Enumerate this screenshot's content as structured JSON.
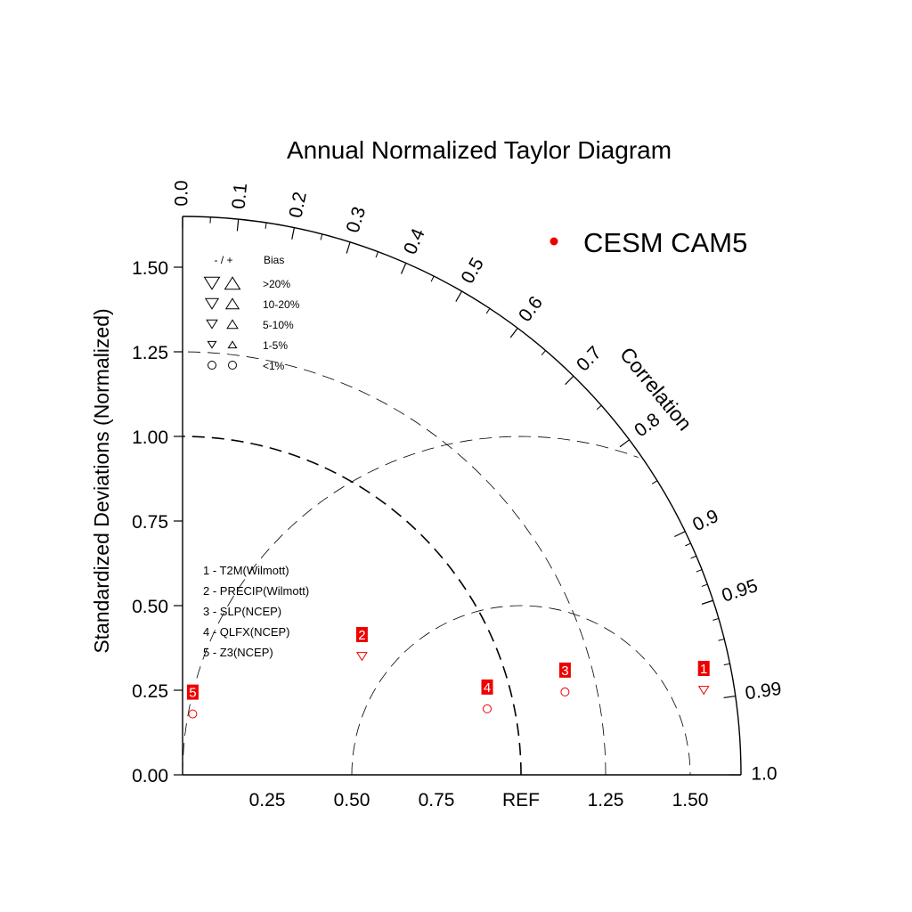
{
  "chart_data": {
    "type": "scatter",
    "title": "Annual Normalized Taylor Diagram",
    "ylabel": "Standardized Deviations (Normalized)",
    "xlabel": "",
    "arc_label": "Correlation",
    "ylim": [
      0,
      1.65
    ],
    "xlim": [
      0,
      1.65
    ],
    "sd_ticks": [
      "0.00",
      "0.25",
      "0.50",
      "0.75",
      "1.00",
      "1.25",
      "1.50"
    ],
    "x_ticks": [
      "0.25",
      "0.50",
      "0.75",
      "REF",
      "1.25",
      "1.50"
    ],
    "correlation_ticks": [
      "0.0",
      "0.1",
      "0.2",
      "0.3",
      "0.4",
      "0.5",
      "0.6",
      "0.7",
      "0.8",
      "0.9",
      "0.95",
      "0.99",
      "1.0"
    ],
    "reference_sd": 1.0,
    "sd_arcs": [
      1.0,
      1.25
    ],
    "rmsd_arcs": [
      0.5,
      1.0
    ],
    "legend": {
      "marker_color": "#ee0000",
      "label": "CESM CAM5",
      "position": "top-right"
    },
    "bias_legend": {
      "header_symbols": "- / +",
      "header_label": "Bias",
      "rows": [
        {
          "range": ">20%",
          "size": 5
        },
        {
          "range": "10-20%",
          "size": 4
        },
        {
          "range": "5-10%",
          "size": 3
        },
        {
          "range": "1-5%",
          "size": 2
        },
        {
          "range": "<1%",
          "size": 0
        }
      ]
    },
    "case_legend": [
      "1 - T2M(Wilmott)",
      "2 - PRECIP(Wilmott)",
      "3 - SLP(NCEP)",
      "4 - QLFX(NCEP)",
      "5 - Z3(NCEP)"
    ],
    "series": [
      {
        "name": "CESM CAM5",
        "color": "#ee0000",
        "points": [
          {
            "id": "1",
            "x": 1.54,
            "y": 0.25,
            "marker": "triangle-down"
          },
          {
            "id": "2",
            "x": 0.53,
            "y": 0.35,
            "marker": "triangle-down"
          },
          {
            "id": "3",
            "x": 1.13,
            "y": 0.245,
            "marker": "circle"
          },
          {
            "id": "4",
            "x": 0.9,
            "y": 0.195,
            "marker": "circle"
          },
          {
            "id": "5",
            "x": 0.03,
            "y": 0.18,
            "marker": "circle"
          }
        ]
      }
    ]
  }
}
